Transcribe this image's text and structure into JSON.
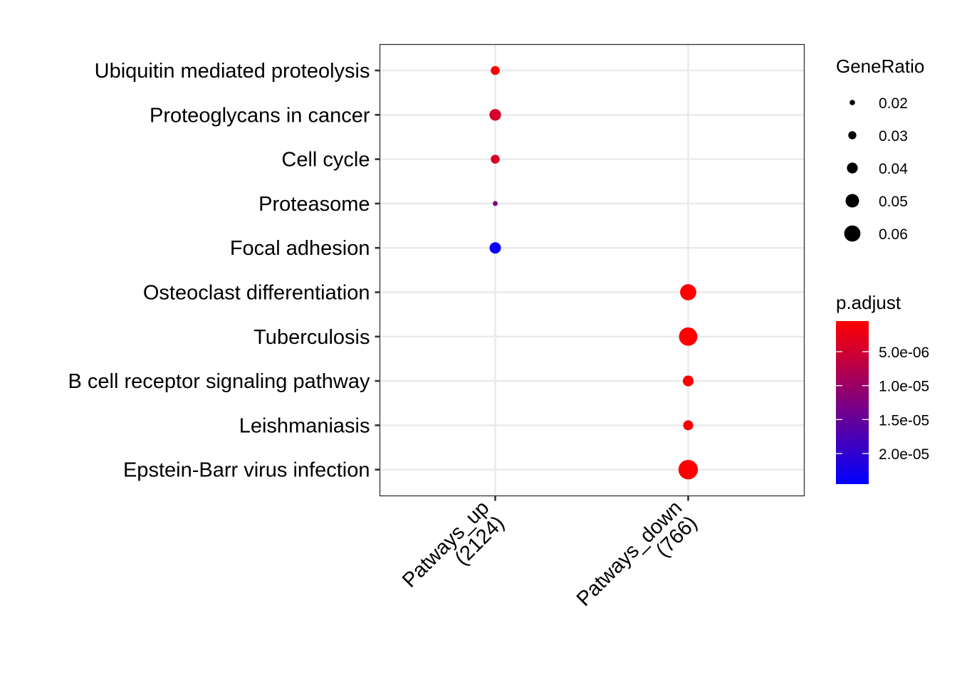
{
  "chart_data": {
    "type": "scatter",
    "title": "",
    "xlabel": "",
    "ylabel": "",
    "x_categories": [
      {
        "line1": "Patways_up",
        "line2": "(2124)"
      },
      {
        "line1": "Patways_down",
        "line2": "(766)"
      }
    ],
    "y_categories": [
      "Ubiquitin mediated proteolysis",
      "Proteoglycans in cancer",
      "Cell cycle",
      "Proteasome",
      "Focal adhesion",
      "Osteoclast differentiation",
      "Tuberculosis",
      "B cell receptor signaling pathway",
      "Leishmaniasis",
      "Epstein-Barr virus infection"
    ],
    "points": [
      {
        "x": "Patways_up",
        "y": "Ubiquitin mediated proteolysis",
        "gene_ratio": 0.033,
        "p_adjust": 8e-07
      },
      {
        "x": "Patways_up",
        "y": "Proteoglycans in cancer",
        "gene_ratio": 0.043,
        "p_adjust": 4.5e-06
      },
      {
        "x": "Patways_up",
        "y": "Cell cycle",
        "gene_ratio": 0.033,
        "p_adjust": 4.3e-06
      },
      {
        "x": "Patways_up",
        "y": "Proteasome",
        "gene_ratio": 0.012,
        "p_adjust": 1.25e-05
      },
      {
        "x": "Patways_up",
        "y": "Focal adhesion",
        "gene_ratio": 0.042,
        "p_adjust": 2.4e-05
      },
      {
        "x": "Patways_down",
        "y": "Osteoclast differentiation",
        "gene_ratio": 0.06,
        "p_adjust": 5e-07
      },
      {
        "x": "Patways_down",
        "y": "Tuberculosis",
        "gene_ratio": 0.068,
        "p_adjust": 5e-07
      },
      {
        "x": "Patways_down",
        "y": "B cell receptor signaling pathway",
        "gene_ratio": 0.04,
        "p_adjust": 8e-07
      },
      {
        "x": "Patways_down",
        "y": "Leishmaniasis",
        "gene_ratio": 0.037,
        "p_adjust": 8e-07
      },
      {
        "x": "Patways_down",
        "y": "Epstein-Barr virus infection",
        "gene_ratio": 0.072,
        "p_adjust": 5e-07
      }
    ],
    "size_legend": {
      "title": "GeneRatio",
      "breaks": [
        0.02,
        0.03,
        0.04,
        0.05,
        0.06
      ],
      "labels": [
        "0.02",
        "0.03",
        "0.04",
        "0.05",
        "0.06"
      ]
    },
    "color_legend": {
      "title": "p.adjust",
      "low_color": "#ff0000",
      "high_color": "#0000ff",
      "range": [
        5e-07,
        2.45e-05
      ],
      "breaks": [
        5e-06,
        1e-05,
        1.5e-05,
        2e-05
      ],
      "labels": [
        "5.0e-06",
        "1.0e-05",
        "1.5e-05",
        "2.0e-05"
      ]
    },
    "grid": true,
    "legend_position": "right"
  }
}
